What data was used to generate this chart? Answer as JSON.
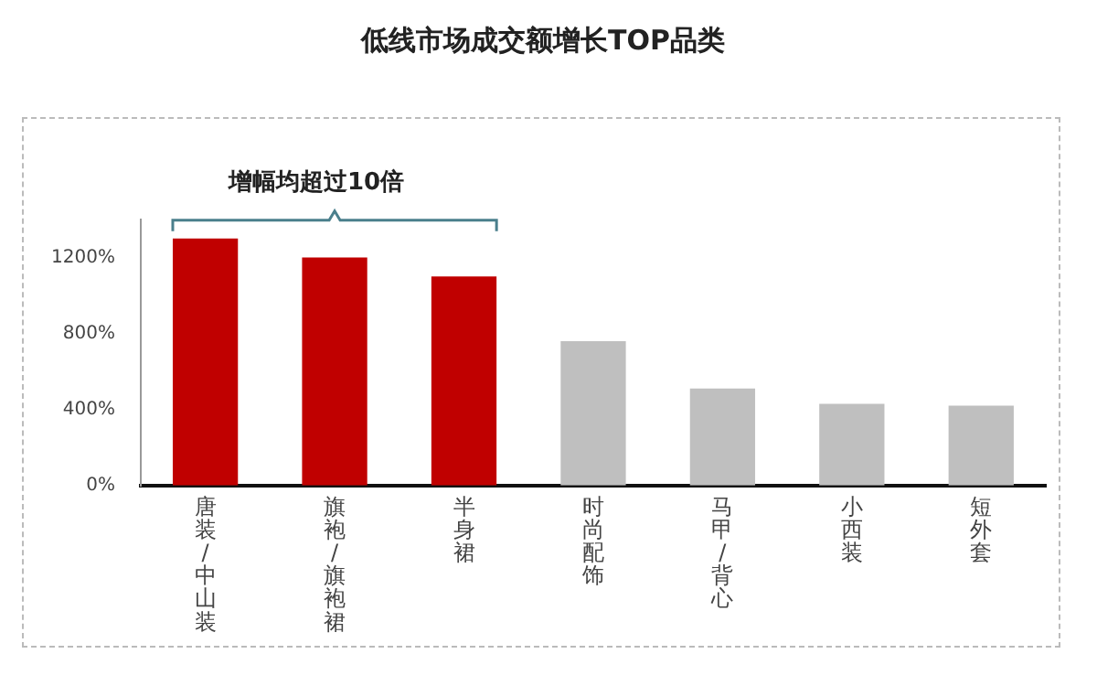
{
  "chart_data": {
    "type": "bar",
    "title": "低线市场成交额增长TOP品类",
    "categories": [
      "唐装/中山装",
      "旗袍/旗袍裙",
      "半身裙",
      "时尚配饰",
      "马甲/背心",
      "小西装",
      "短外套"
    ],
    "values": [
      1300,
      1200,
      1100,
      760,
      510,
      430,
      420
    ],
    "colors": [
      "#c00000",
      "#c00000",
      "#c00000",
      "#bfbfbf",
      "#bfbfbf",
      "#bfbfbf",
      "#bfbfbf"
    ],
    "ylim": [
      0,
      1400
    ],
    "yticks": [
      {
        "value": 0,
        "label": "0%"
      },
      {
        "value": 400,
        "label": "400%"
      },
      {
        "value": 800,
        "label": "800%"
      },
      {
        "value": 1200,
        "label": "1200%"
      }
    ],
    "grid": false,
    "legend": false,
    "annotations": [
      "增幅均超过10倍"
    ]
  }
}
